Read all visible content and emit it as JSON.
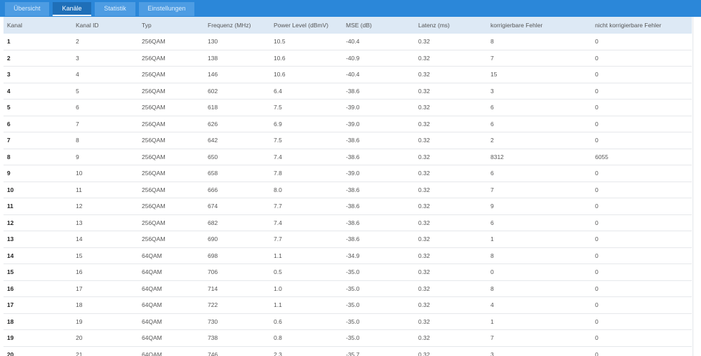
{
  "tabs": [
    "Übersicht",
    "Kanäle",
    "Statistik",
    "Einstellungen"
  ],
  "table": {
    "columns": [
      "Kanal",
      "Kanal ID",
      "Typ",
      "Frequenz (MHz)",
      "Power Level (dBmV)",
      "MSE (dB)",
      "Latenz (ms)",
      "korrigierbare Fehler",
      "nicht korrigierbare Fehler"
    ],
    "rows": [
      [
        "1",
        "2",
        "256QAM",
        "130",
        "10.5",
        "-40.4",
        "0.32",
        "8",
        "0"
      ],
      [
        "2",
        "3",
        "256QAM",
        "138",
        "10.6",
        "-40.9",
        "0.32",
        "7",
        "0"
      ],
      [
        "3",
        "4",
        "256QAM",
        "146",
        "10.6",
        "-40.4",
        "0.32",
        "15",
        "0"
      ],
      [
        "4",
        "5",
        "256QAM",
        "602",
        "6.4",
        "-38.6",
        "0.32",
        "3",
        "0"
      ],
      [
        "5",
        "6",
        "256QAM",
        "618",
        "7.5",
        "-39.0",
        "0.32",
        "6",
        "0"
      ],
      [
        "6",
        "7",
        "256QAM",
        "626",
        "6.9",
        "-39.0",
        "0.32",
        "6",
        "0"
      ],
      [
        "7",
        "8",
        "256QAM",
        "642",
        "7.5",
        "-38.6",
        "0.32",
        "2",
        "0"
      ],
      [
        "8",
        "9",
        "256QAM",
        "650",
        "7.4",
        "-38.6",
        "0.32",
        "8312",
        "6055"
      ],
      [
        "9",
        "10",
        "256QAM",
        "658",
        "7.8",
        "-39.0",
        "0.32",
        "6",
        "0"
      ],
      [
        "10",
        "11",
        "256QAM",
        "666",
        "8.0",
        "-38.6",
        "0.32",
        "7",
        "0"
      ],
      [
        "11",
        "12",
        "256QAM",
        "674",
        "7.7",
        "-38.6",
        "0.32",
        "9",
        "0"
      ],
      [
        "12",
        "13",
        "256QAM",
        "682",
        "7.4",
        "-38.6",
        "0.32",
        "6",
        "0"
      ],
      [
        "13",
        "14",
        "256QAM",
        "690",
        "7.7",
        "-38.6",
        "0.32",
        "1",
        "0"
      ],
      [
        "14",
        "15",
        "64QAM",
        "698",
        "1.1",
        "-34.9",
        "0.32",
        "8",
        "0"
      ],
      [
        "15",
        "16",
        "64QAM",
        "706",
        "0.5",
        "-35.0",
        "0.32",
        "0",
        "0"
      ],
      [
        "16",
        "17",
        "64QAM",
        "714",
        "1.0",
        "-35.0",
        "0.32",
        "8",
        "0"
      ],
      [
        "17",
        "18",
        "64QAM",
        "722",
        "1.1",
        "-35.0",
        "0.32",
        "4",
        "0"
      ],
      [
        "18",
        "19",
        "64QAM",
        "730",
        "0.6",
        "-35.0",
        "0.32",
        "1",
        "0"
      ],
      [
        "19",
        "20",
        "64QAM",
        "738",
        "0.8",
        "-35.0",
        "0.32",
        "7",
        "0"
      ],
      [
        "20",
        "21",
        "64QAM",
        "746",
        "2.3",
        "-35.7",
        "0.32",
        "3",
        "0"
      ]
    ]
  }
}
